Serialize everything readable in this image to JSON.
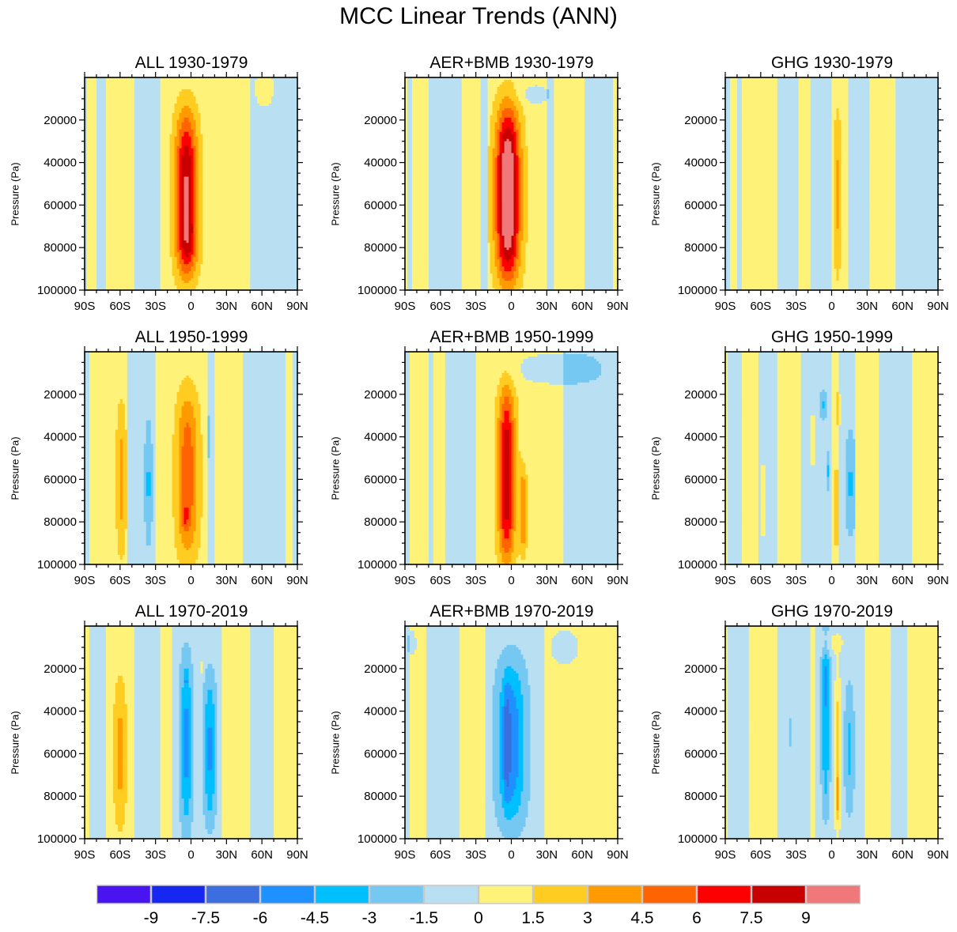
{
  "chart_data": {
    "type": "heatmap",
    "title": "MCC Linear Trends (ANN)",
    "xlabel": "",
    "ylabel": "Pressure (Pa)",
    "x_ticks": [
      "90S",
      "60S",
      "30S",
      "0",
      "30N",
      "60N",
      "90N"
    ],
    "x_tick_values": [
      -90,
      -60,
      -30,
      0,
      30,
      60,
      90
    ],
    "y_ticks": [
      "20000",
      "40000",
      "60000",
      "80000",
      "100000"
    ],
    "y_tick_values": [
      20000,
      40000,
      60000,
      80000,
      100000
    ],
    "xlim": [
      -90,
      90
    ],
    "ylim": [
      0,
      100000
    ],
    "y_reversed": true,
    "colorbar": {
      "levels": [
        -9,
        -7.5,
        -6,
        -4.5,
        -3,
        -1.5,
        0,
        1.5,
        3,
        4.5,
        6,
        7.5,
        9
      ],
      "labels": [
        "-9",
        "-7.5",
        "-6",
        "-4.5",
        "-3",
        "-1.5",
        "0",
        "1.5",
        "3",
        "4.5",
        "6",
        "7.5",
        "9"
      ],
      "colors": [
        "#4a14f0",
        "#1628f0",
        "#3c6ee0",
        "#1e90ff",
        "#00bfff",
        "#74c8f2",
        "#b8e0f2",
        "#fff278",
        "#ffcc22",
        "#ff9a00",
        "#ff6400",
        "#ff0000",
        "#c80000",
        "#f07878"
      ]
    },
    "panels": [
      {
        "title": "ALL 1930-1979",
        "lon_bands": [
          [
            -90,
            -87,
            -0.5
          ],
          [
            -87,
            -80,
            0.8
          ],
          [
            -80,
            -72,
            -0.8
          ],
          [
            -72,
            -48,
            0.8
          ],
          [
            -48,
            -25,
            -0.8
          ],
          [
            -25,
            50,
            0.8
          ],
          [
            50,
            90,
            -0.8
          ]
        ],
        "features": [
          {
            "lat": -4,
            "p": 55000,
            "lat_w": 9,
            "p_w": 38000,
            "amp": 8.5
          },
          {
            "lat": -2,
            "p": 78000,
            "lat_w": 8,
            "p_w": 12000,
            "amp": 1.5
          },
          {
            "lat": 62,
            "p": 5000,
            "lat_w": 10,
            "p_w": 10000,
            "amp": 1.4
          }
        ]
      },
      {
        "title": "AER+BMB 1930-1979",
        "lon_bands": [
          [
            -90,
            -88,
            0.8
          ],
          [
            -88,
            -84,
            -0.8
          ],
          [
            -84,
            -70,
            0.8
          ],
          [
            -70,
            -42,
            -0.8
          ],
          [
            -42,
            -25,
            0.8
          ],
          [
            -25,
            -20,
            -0.8
          ],
          [
            -20,
            30,
            0.8
          ],
          [
            30,
            36,
            -0.8
          ],
          [
            36,
            62,
            0.8
          ],
          [
            62,
            86,
            -0.8
          ],
          [
            86,
            90,
            0.8
          ]
        ],
        "features": [
          {
            "lat": -3,
            "p": 55000,
            "lat_w": 10,
            "p_w": 40000,
            "amp": 11.0
          },
          {
            "lat": 20,
            "p": 8000,
            "lat_w": 14,
            "p_w": 5000,
            "amp": -1.4
          }
        ]
      },
      {
        "title": "GHG 1930-1979",
        "lon_bands": [
          [
            -90,
            -86,
            -0.5
          ],
          [
            -86,
            -80,
            0.8
          ],
          [
            -80,
            -75,
            -0.8
          ],
          [
            -75,
            -45,
            0.8
          ],
          [
            -45,
            -28,
            -0.8
          ],
          [
            -28,
            -18,
            0.8
          ],
          [
            -18,
            0,
            -0.8
          ],
          [
            0,
            14,
            0.8
          ],
          [
            14,
            32,
            -0.8
          ],
          [
            32,
            54,
            0.8
          ],
          [
            54,
            90,
            -0.8
          ]
        ],
        "features": [
          {
            "lat": 5,
            "p": 55000,
            "lat_w": 3,
            "p_w": 38000,
            "amp": 2.4
          }
        ]
      },
      {
        "title": "ALL 1950-1999",
        "lon_bands": [
          [
            -90,
            -85,
            -0.8
          ],
          [
            -85,
            -70,
            0.8
          ],
          [
            -70,
            -54,
            0.8
          ],
          [
            -54,
            -30,
            -0.8
          ],
          [
            -30,
            15,
            0.8
          ],
          [
            15,
            20,
            -0.8
          ],
          [
            20,
            45,
            0.8
          ],
          [
            45,
            80,
            -0.8
          ],
          [
            80,
            86,
            0.8
          ],
          [
            86,
            90,
            -0.8
          ]
        ],
        "features": [
          {
            "lat": -59,
            "p": 60000,
            "lat_w": 4,
            "p_w": 35000,
            "amp": 2.6
          },
          {
            "lat": -36,
            "p": 62000,
            "lat_w": 3,
            "p_w": 28000,
            "amp": -2.5
          },
          {
            "lat": -3,
            "p": 58000,
            "lat_w": 9,
            "p_w": 38000,
            "amp": 4.8
          },
          {
            "lat": -5,
            "p": 78000,
            "lat_w": 3,
            "p_w": 6000,
            "amp": 1.8
          },
          {
            "lat": 15,
            "p": 40000,
            "lat_w": 1.5,
            "p_w": 10000,
            "amp": -2.2
          }
        ]
      },
      {
        "title": "AER+BMB 1950-1999",
        "lon_bands": [
          [
            -90,
            -86,
            -0.8
          ],
          [
            -86,
            -70,
            0.8
          ],
          [
            -70,
            -66,
            -0.8
          ],
          [
            -66,
            -55,
            0.8
          ],
          [
            -55,
            -30,
            -0.8
          ],
          [
            -30,
            44,
            0.8
          ],
          [
            44,
            90,
            -0.8
          ]
        ],
        "features": [
          {
            "lat": -4,
            "p": 58000,
            "lat_w": 7,
            "p_w": 40000,
            "amp": 8.0
          },
          {
            "lat": 10,
            "p": 75000,
            "lat_w": 3,
            "p_w": 20000,
            "amp": 3.5
          },
          {
            "lat": 40,
            "p": 8000,
            "lat_w": 40,
            "p_w": 8000,
            "amp": -1.6
          }
        ]
      },
      {
        "title": "GHG 1950-1999",
        "lon_bands": [
          [
            -90,
            -88,
            0.8
          ],
          [
            -88,
            -75,
            -0.8
          ],
          [
            -75,
            -62,
            0.8
          ],
          [
            -62,
            -45,
            -0.8
          ],
          [
            -45,
            -25,
            0.8
          ],
          [
            -25,
            0,
            -0.8
          ],
          [
            0,
            6,
            0.8
          ],
          [
            6,
            20,
            -0.8
          ],
          [
            20,
            40,
            0.8
          ],
          [
            40,
            68,
            -0.8
          ],
          [
            68,
            90,
            0.8
          ]
        ],
        "features": [
          {
            "lat": -58,
            "p": 70000,
            "lat_w": 2,
            "p_w": 18000,
            "amp": 2.4
          },
          {
            "lat": -16,
            "p": 42000,
            "lat_w": 2.5,
            "p_w": 12000,
            "amp": 2.4
          },
          {
            "lat": -7,
            "p": 25000,
            "lat_w": 2.5,
            "p_w": 7000,
            "amp": -2.3
          },
          {
            "lat": -3,
            "p": 56000,
            "lat_w": 1.5,
            "p_w": 9000,
            "amp": -2.3
          },
          {
            "lat": 4,
            "p": 73000,
            "lat_w": 2,
            "p_w": 18000,
            "amp": 2.4
          },
          {
            "lat": 6,
            "p": 27000,
            "lat_w": 1.8,
            "p_w": 8000,
            "amp": 2.4
          },
          {
            "lat": 16,
            "p": 62000,
            "lat_w": 4,
            "p_w": 24000,
            "amp": -2.4
          }
        ]
      },
      {
        "title": "ALL 1970-2019",
        "lon_bands": [
          [
            -90,
            -85,
            0.8
          ],
          [
            -85,
            -72,
            -0.8
          ],
          [
            -72,
            -48,
            0.8
          ],
          [
            -48,
            -25,
            -0.8
          ],
          [
            -25,
            -15,
            0.8
          ],
          [
            -15,
            25,
            -0.8
          ],
          [
            25,
            50,
            0.8
          ],
          [
            50,
            70,
            -0.8
          ],
          [
            70,
            90,
            0.8
          ]
        ],
        "features": [
          {
            "lat": -60,
            "p": 60000,
            "lat_w": 5,
            "p_w": 34000,
            "amp": 2.6
          },
          {
            "lat": -4,
            "p": 55000,
            "lat_w": 5,
            "p_w": 40000,
            "amp": -4.2
          },
          {
            "lat": -4,
            "p": 25000,
            "lat_w": 1.5,
            "p_w": 4000,
            "amp": -1.5
          },
          {
            "lat": 16,
            "p": 58000,
            "lat_w": 5,
            "p_w": 34000,
            "amp": -4.0
          },
          {
            "lat": 6,
            "p": 82000,
            "lat_w": 1,
            "p_w": 12000,
            "amp": 2.0
          },
          {
            "lat": 9,
            "p": 20000,
            "lat_w": 1.2,
            "p_w": 3000,
            "amp": 2.0
          }
        ]
      },
      {
        "title": "AER+BMB 1970-2019",
        "lon_bands": [
          [
            -90,
            -85,
            -0.8
          ],
          [
            -85,
            -72,
            0.8
          ],
          [
            -72,
            -43,
            -0.8
          ],
          [
            -43,
            -22,
            0.8
          ],
          [
            -22,
            28,
            -0.8
          ],
          [
            28,
            90,
            0.8
          ]
        ],
        "features": [
          {
            "lat": 0,
            "p": 55000,
            "lat_w": 12,
            "p_w": 38000,
            "amp": -4.8
          },
          {
            "lat": -4,
            "p": 55000,
            "lat_w": 3,
            "p_w": 28000,
            "amp": -2.2
          },
          {
            "lat": 45,
            "p": 10000,
            "lat_w": 14,
            "p_w": 9000,
            "amp": -1.5
          },
          {
            "lat": -84,
            "p": 8000,
            "lat_w": 4,
            "p_w": 7000,
            "amp": -1.5
          }
        ]
      },
      {
        "title": "GHG 1970-2019",
        "lon_bands": [
          [
            -90,
            -88,
            0.8
          ],
          [
            -88,
            -70,
            -0.8
          ],
          [
            -70,
            -45,
            0.8
          ],
          [
            -45,
            -18,
            -0.8
          ],
          [
            -18,
            -14,
            0.8
          ],
          [
            -14,
            10,
            -0.8
          ],
          [
            10,
            28,
            -0.8
          ],
          [
            28,
            50,
            0.8
          ],
          [
            50,
            65,
            -0.8
          ],
          [
            65,
            90,
            0.8
          ]
        ],
        "features": [
          {
            "lat": -5,
            "p": 45000,
            "lat_w": 3.5,
            "p_w": 42000,
            "amp": -3.6
          },
          {
            "lat": -5,
            "p": 25000,
            "lat_w": 4,
            "p_w": 10000,
            "amp": -1.2
          },
          {
            "lat": 5,
            "p": 60000,
            "lat_w": 2.5,
            "p_w": 42000,
            "amp": 2.8
          },
          {
            "lat": 5,
            "p": 80000,
            "lat_w": 1,
            "p_w": 10000,
            "amp": 2.2
          },
          {
            "lat": 15,
            "p": 58000,
            "lat_w": 4,
            "p_w": 30000,
            "amp": -2.4
          },
          {
            "lat": -35,
            "p": 50000,
            "lat_w": 1,
            "p_w": 8000,
            "amp": -1.2
          },
          {
            "lat": 0,
            "p": 8000,
            "lat_w": 14,
            "p_w": 5000,
            "amp": 1.2
          }
        ]
      }
    ]
  }
}
